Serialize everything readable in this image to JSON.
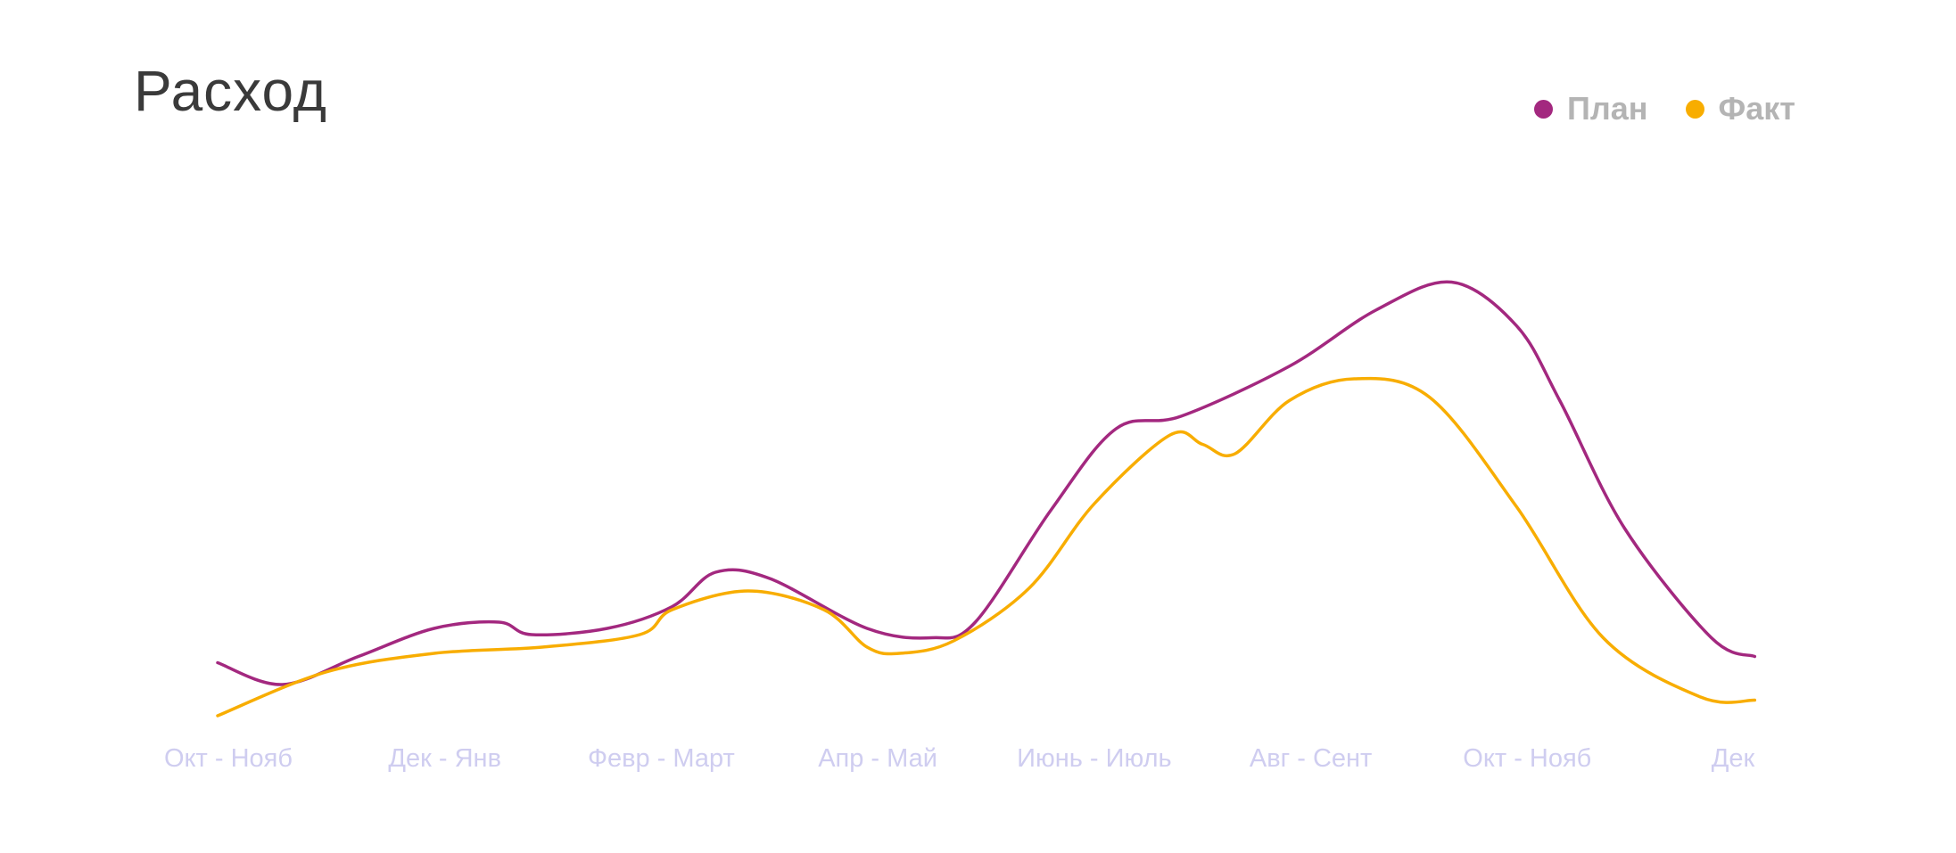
{
  "chart_data": {
    "type": "line",
    "title": "Расход",
    "categories": [
      "Окт - Нояб",
      "Дек - Янв",
      "Февр - Март",
      "Апр - Май",
      "Июнь - Июль",
      "Авг - Сент",
      "Окт - Нояб",
      "Дек"
    ],
    "series": [
      {
        "name": "План",
        "color": "#a3287f",
        "points": [
          [
            0.0,
            29
          ],
          [
            0.3,
            22
          ],
          [
            0.65,
            31
          ],
          [
            1.0,
            40
          ],
          [
            1.3,
            42
          ],
          [
            1.45,
            38
          ],
          [
            1.8,
            40
          ],
          [
            2.1,
            47
          ],
          [
            2.3,
            58
          ],
          [
            2.55,
            56
          ],
          [
            3.0,
            40
          ],
          [
            3.3,
            37
          ],
          [
            3.5,
            42
          ],
          [
            3.85,
            78
          ],
          [
            4.15,
            104
          ],
          [
            4.45,
            108
          ],
          [
            4.95,
            124
          ],
          [
            5.35,
            142
          ],
          [
            5.7,
            151
          ],
          [
            6.0,
            137
          ],
          [
            6.2,
            113
          ],
          [
            6.5,
            72
          ],
          [
            6.9,
            37
          ],
          [
            7.1,
            31
          ]
        ]
      },
      {
        "name": "Факт",
        "color": "#f8ad00",
        "points": [
          [
            0.0,
            12
          ],
          [
            0.5,
            26
          ],
          [
            1.0,
            32
          ],
          [
            1.5,
            34
          ],
          [
            1.95,
            38
          ],
          [
            2.1,
            46
          ],
          [
            2.45,
            52
          ],
          [
            2.8,
            46
          ],
          [
            3.0,
            34
          ],
          [
            3.15,
            32
          ],
          [
            3.4,
            36
          ],
          [
            3.75,
            53
          ],
          [
            4.05,
            80
          ],
          [
            4.4,
            102
          ],
          [
            4.55,
            99
          ],
          [
            4.7,
            96
          ],
          [
            4.95,
            113
          ],
          [
            5.25,
            120
          ],
          [
            5.6,
            114
          ],
          [
            6.0,
            79
          ],
          [
            6.4,
            37
          ],
          [
            6.85,
            18
          ],
          [
            7.1,
            17
          ]
        ]
      }
    ],
    "xlabel": "",
    "ylabel": "",
    "ylim": [
      0,
      160
    ],
    "grid": false,
    "legend": "top-right"
  }
}
